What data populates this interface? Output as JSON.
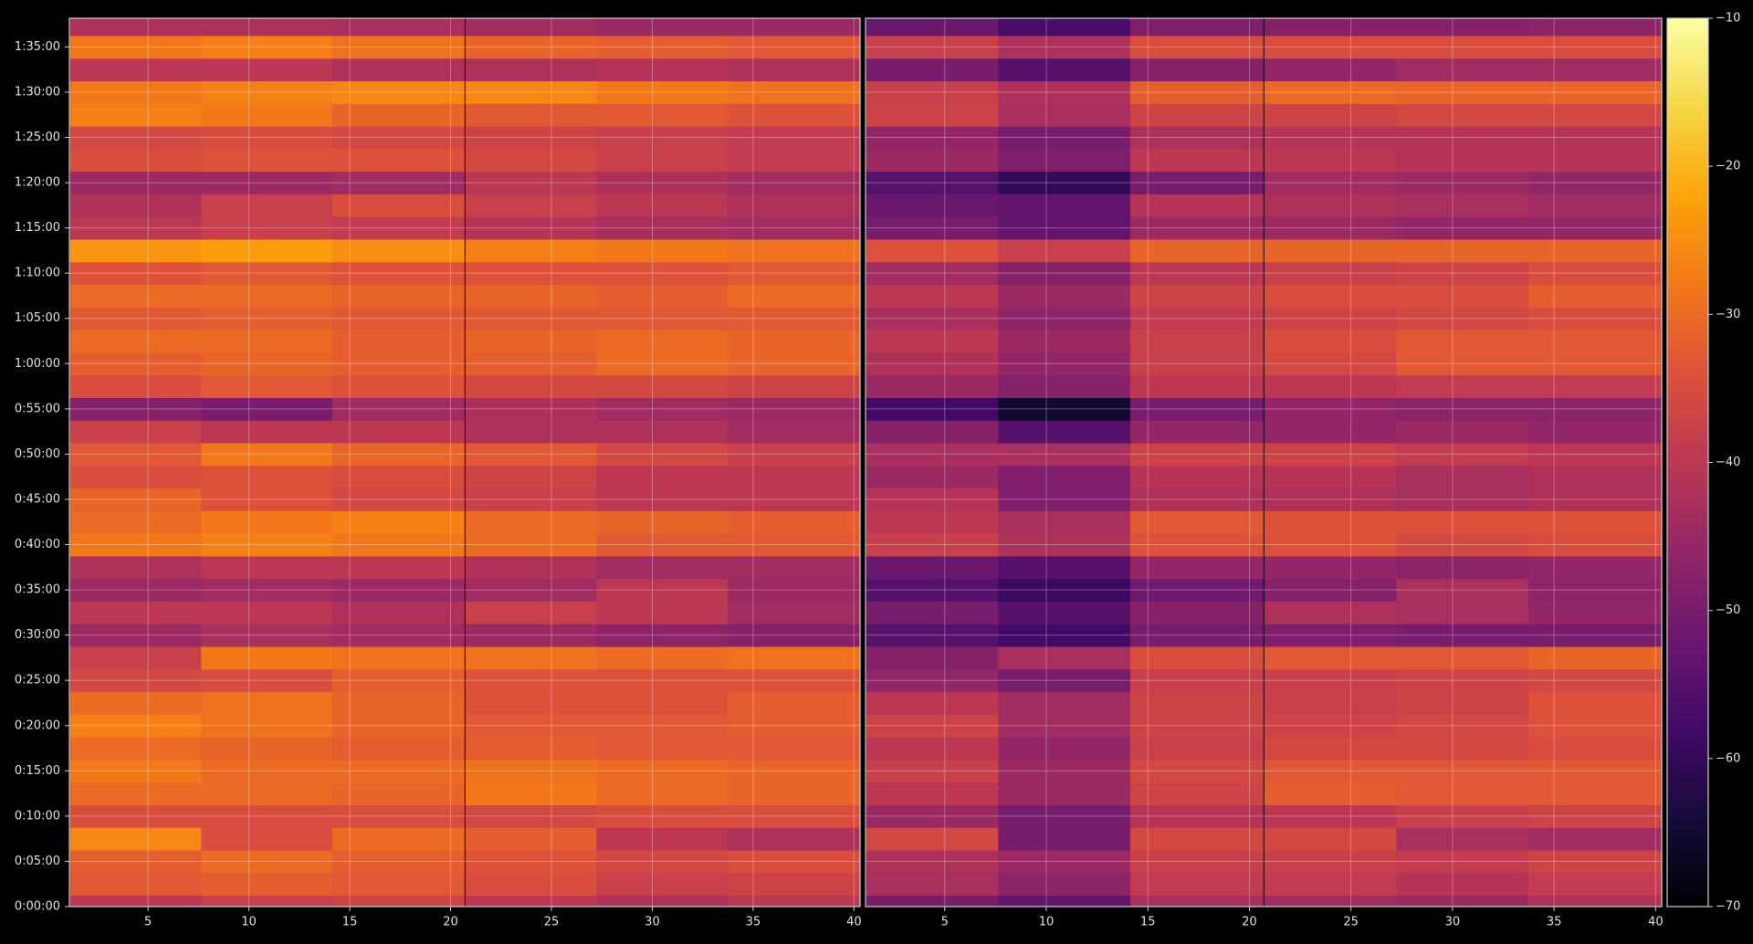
{
  "chart_data": {
    "type": "heatmap",
    "colormap": "inferno",
    "grid": true,
    "y": [
      0,
      150,
      300,
      450,
      600,
      750,
      900,
      1050,
      1200,
      1350,
      1500,
      1650,
      1800,
      1950,
      2100,
      2250,
      2400,
      2550,
      2700,
      2850,
      3000,
      3150,
      3300,
      3450,
      3600,
      3750,
      3900,
      4050,
      4200,
      4350,
      4500,
      4650,
      4800,
      4950,
      5100,
      5250,
      5400,
      5550,
      5700,
      5850
    ],
    "ylim": [
      0,
      5890
    ],
    "yticks": [
      {
        "value": 0,
        "label": "0:00:00"
      },
      {
        "value": 300,
        "label": "0:05:00"
      },
      {
        "value": 600,
        "label": "0:10:00"
      },
      {
        "value": 900,
        "label": "0:15:00"
      },
      {
        "value": 1200,
        "label": "0:20:00"
      },
      {
        "value": 1500,
        "label": "0:25:00"
      },
      {
        "value": 1800,
        "label": "0:30:00"
      },
      {
        "value": 2100,
        "label": "0:35:00"
      },
      {
        "value": 2400,
        "label": "0:40:00"
      },
      {
        "value": 2700,
        "label": "0:45:00"
      },
      {
        "value": 3000,
        "label": "0:50:00"
      },
      {
        "value": 3300,
        "label": "0:55:00"
      },
      {
        "value": 3600,
        "label": "1:00:00"
      },
      {
        "value": 3900,
        "label": "1:05:00"
      },
      {
        "value": 4200,
        "label": "1:10:00"
      },
      {
        "value": 4500,
        "label": "1:15:00"
      },
      {
        "value": 4800,
        "label": "1:20:00"
      },
      {
        "value": 5100,
        "label": "1:25:00"
      },
      {
        "value": 5400,
        "label": "1:30:00"
      },
      {
        "value": 5700,
        "label": "1:35:00"
      }
    ],
    "zlim": [
      -70,
      -10
    ],
    "zticks": [
      {
        "value": -70,
        "label": "−70"
      },
      {
        "value": -60,
        "label": "−60"
      },
      {
        "value": -50,
        "label": "−50"
      },
      {
        "value": -40,
        "label": "−40"
      },
      {
        "value": -30,
        "label": "−30"
      },
      {
        "value": -20,
        "label": "−20"
      },
      {
        "value": -10,
        "label": "−10"
      }
    ],
    "panels": [
      {
        "x": [
          4.4,
          10.9,
          17.4,
          24,
          30.5,
          37
        ],
        "xlim": [
          1.1,
          40.3
        ],
        "xticks": [
          5,
          10,
          15,
          20,
          25,
          30,
          35,
          40
        ],
        "values": [
          [
            -40,
            -38,
            -37,
            -40,
            -42,
            -40
          ],
          [
            -33,
            -32,
            -33,
            -35,
            -38,
            -37
          ],
          [
            -32,
            -30,
            -32,
            -34,
            -36,
            -35
          ],
          [
            -26,
            -35,
            -30,
            -32,
            -40,
            -42
          ],
          [
            -35,
            -35,
            -35,
            -36,
            -35,
            -35
          ],
          [
            -30,
            -30,
            -31,
            -28,
            -30,
            -31
          ],
          [
            -28,
            -30,
            -30,
            -29,
            -30,
            -31
          ],
          [
            -30,
            -31,
            -32,
            -32,
            -33,
            -33
          ],
          [
            -27,
            -29,
            -31,
            -33,
            -33,
            -32
          ],
          [
            -30,
            -29,
            -31,
            -34,
            -34,
            -32
          ],
          [
            -36,
            -35,
            -32,
            -34,
            -34,
            -34
          ],
          [
            -38,
            -28,
            -29,
            -29,
            -30,
            -29
          ],
          [
            -45,
            -43,
            -44,
            -45,
            -47,
            -48
          ],
          [
            -40,
            -40,
            -42,
            -38,
            -40,
            -44
          ],
          [
            -45,
            -44,
            -45,
            -44,
            -40,
            -45
          ],
          [
            -42,
            -40,
            -40,
            -42,
            -44,
            -44
          ],
          [
            -28,
            -27,
            -28,
            -30,
            -33,
            -33
          ],
          [
            -30,
            -28,
            -27,
            -30,
            -31,
            -32
          ],
          [
            -31,
            -34,
            -36,
            -38,
            -40,
            -40
          ],
          [
            -35,
            -34,
            -35,
            -37,
            -40,
            -40
          ],
          [
            -33,
            -28,
            -31,
            -33,
            -36,
            -38
          ],
          [
            -38,
            -40,
            -40,
            -42,
            -42,
            -44
          ],
          [
            -48,
            -50,
            -44,
            -42,
            -44,
            -45
          ],
          [
            -35,
            -33,
            -34,
            -36,
            -36,
            -37
          ],
          [
            -32,
            -31,
            -32,
            -32,
            -30,
            -31
          ],
          [
            -30,
            -30,
            -32,
            -31,
            -30,
            -31
          ],
          [
            -33,
            -32,
            -33,
            -33,
            -33,
            -33
          ],
          [
            -30,
            -30,
            -31,
            -31,
            -32,
            -30
          ],
          [
            -34,
            -33,
            -34,
            -34,
            -34,
            -33
          ],
          [
            -24,
            -23,
            -25,
            -27,
            -28,
            -29
          ],
          [
            -40,
            -38,
            -39,
            -41,
            -43,
            -44
          ],
          [
            -42,
            -38,
            -35,
            -38,
            -40,
            -42
          ],
          [
            -45,
            -45,
            -44,
            -40,
            -42,
            -44
          ],
          [
            -35,
            -34,
            -34,
            -36,
            -38,
            -39
          ],
          [
            -36,
            -35,
            -36,
            -37,
            -38,
            -39
          ],
          [
            -27,
            -28,
            -31,
            -33,
            -33,
            -34
          ],
          [
            -28,
            -27,
            -26,
            -26,
            -28,
            -29
          ],
          [
            -40,
            -40,
            -42,
            -42,
            -41,
            -42
          ],
          [
            -28,
            -27,
            -29,
            -31,
            -32,
            -33
          ],
          [
            -42,
            -42,
            -43,
            -44,
            -45,
            -45
          ]
        ]
      },
      {
        "x": [
          4.4,
          10.9,
          17.4,
          24,
          30.5,
          37
        ],
        "xlim": [
          1.1,
          40.3
        ],
        "xticks": [
          5,
          10,
          15,
          20,
          25,
          30,
          35,
          40
        ],
        "values": [
          [
            -50,
            -53,
            -43,
            -44,
            -45,
            -42
          ],
          [
            -43,
            -47,
            -39,
            -39,
            -41,
            -39
          ],
          [
            -42,
            -45,
            -38,
            -38,
            -39,
            -37
          ],
          [
            -36,
            -50,
            -36,
            -36,
            -43,
            -44
          ],
          [
            -45,
            -50,
            -41,
            -40,
            -38,
            -37
          ],
          [
            -40,
            -45,
            -37,
            -32,
            -33,
            -33
          ],
          [
            -38,
            -45,
            -36,
            -33,
            -33,
            -33
          ],
          [
            -40,
            -46,
            -38,
            -36,
            -36,
            -35
          ],
          [
            -37,
            -44,
            -37,
            -37,
            -36,
            -34
          ],
          [
            -40,
            -44,
            -37,
            -38,
            -37,
            -34
          ],
          [
            -46,
            -50,
            -38,
            -38,
            -37,
            -36
          ],
          [
            -48,
            -43,
            -35,
            -33,
            -33,
            -31
          ],
          [
            -55,
            -58,
            -50,
            -49,
            -50,
            -50
          ],
          [
            -50,
            -55,
            -48,
            -42,
            -43,
            -46
          ],
          [
            -55,
            -59,
            -51,
            -48,
            -43,
            -47
          ],
          [
            -52,
            -55,
            -46,
            -46,
            -47,
            -46
          ],
          [
            -38,
            -42,
            -34,
            -34,
            -36,
            -35
          ],
          [
            -40,
            -43,
            -33,
            -34,
            -34,
            -34
          ],
          [
            -41,
            -49,
            -42,
            -42,
            -43,
            -42
          ],
          [
            -45,
            -49,
            -41,
            -41,
            -43,
            -42
          ],
          [
            -43,
            -43,
            -37,
            -37,
            -39,
            -40
          ],
          [
            -48,
            -55,
            -46,
            -46,
            -45,
            -46
          ],
          [
            -58,
            -65,
            -50,
            -46,
            -47,
            -47
          ],
          [
            -45,
            -48,
            -40,
            -40,
            -39,
            -39
          ],
          [
            -42,
            -46,
            -38,
            -36,
            -33,
            -33
          ],
          [
            -40,
            -45,
            -38,
            -35,
            -33,
            -33
          ],
          [
            -43,
            -47,
            -39,
            -37,
            -36,
            -35
          ],
          [
            -40,
            -45,
            -37,
            -35,
            -35,
            -32
          ],
          [
            -44,
            -48,
            -40,
            -38,
            -37,
            -35
          ],
          [
            -34,
            -38,
            -31,
            -31,
            -31,
            -31
          ],
          [
            -50,
            -53,
            -45,
            -45,
            -46,
            -46
          ],
          [
            -52,
            -53,
            -41,
            -42,
            -43,
            -44
          ],
          [
            -55,
            -60,
            -50,
            -44,
            -45,
            -46
          ],
          [
            -45,
            -49,
            -40,
            -40,
            -41,
            -41
          ],
          [
            -46,
            -50,
            -42,
            -41,
            -41,
            -41
          ],
          [
            -37,
            -43,
            -37,
            -37,
            -36,
            -36
          ],
          [
            -38,
            -42,
            -32,
            -30,
            -31,
            -31
          ],
          [
            -50,
            -55,
            -48,
            -46,
            -44,
            -44
          ],
          [
            -38,
            -42,
            -35,
            -35,
            -35,
            -35
          ],
          [
            -52,
            -57,
            -49,
            -48,
            -48,
            -47
          ]
        ]
      }
    ]
  }
}
